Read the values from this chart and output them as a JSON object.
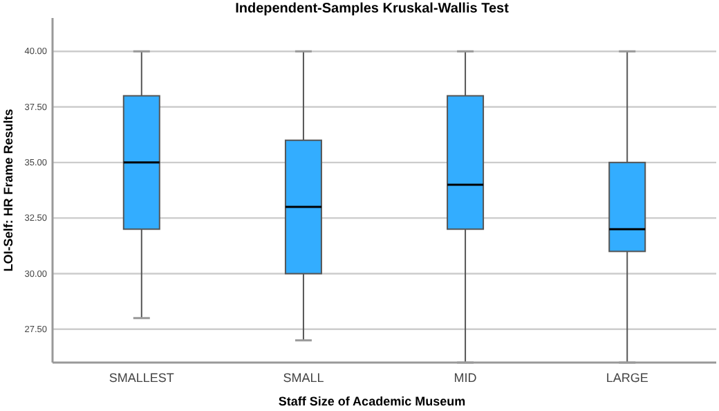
{
  "chart_data": {
    "type": "box",
    "title": "Independent-Samples Kruskal-Wallis Test",
    "xlabel": "Staff Size of Academic Museum",
    "ylabel": "LOI-Self: HR Frame Results",
    "categories": [
      "SMALLEST",
      "SMALL",
      "MID",
      "LARGE"
    ],
    "color": "#33adff",
    "boxes": [
      {
        "low": 28,
        "q1": 32,
        "median": 35,
        "q3": 38,
        "high": 40
      },
      {
        "low": 27,
        "q1": 30,
        "median": 33,
        "q3": 36,
        "high": 40
      },
      {
        "low": 26,
        "q1": 32,
        "median": 34,
        "q3": 38,
        "high": 40
      },
      {
        "low": 26,
        "q1": 31,
        "median": 32,
        "q3": 35,
        "high": 40
      }
    ],
    "ylim": [
      26,
      41.5
    ],
    "yticks": [
      {
        "value": 27.5,
        "label": "27.50"
      },
      {
        "value": 30,
        "label": "30.00"
      },
      {
        "value": 32.5,
        "label": "32.50"
      },
      {
        "value": 35,
        "label": "35.00"
      },
      {
        "value": 37.5,
        "label": "37.50"
      },
      {
        "value": 40,
        "label": "40.00"
      }
    ],
    "grid": "y"
  }
}
